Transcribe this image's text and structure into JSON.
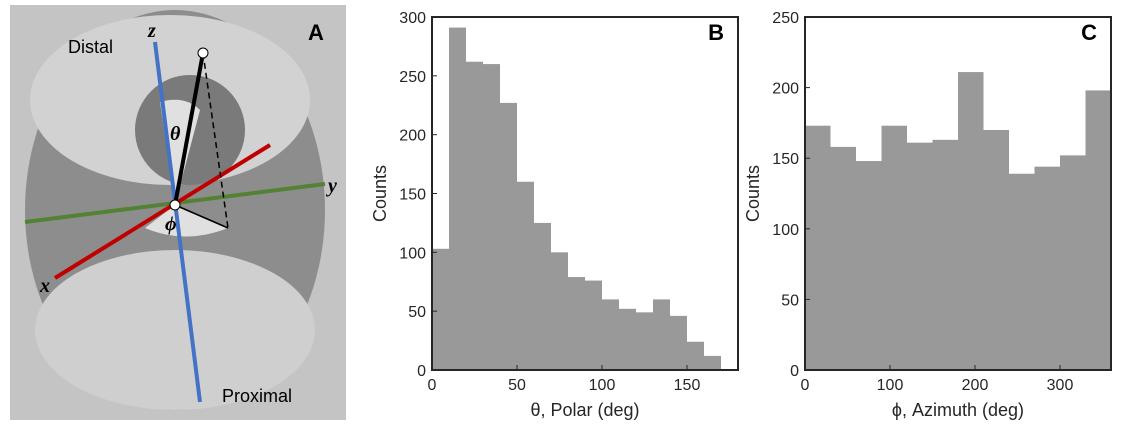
{
  "panel_a": {
    "label": "A",
    "distal": "Distal",
    "proximal": "Proximal",
    "z": "z",
    "y": "y",
    "x": "x",
    "theta": "θ",
    "phi": "ϕ"
  },
  "chart_data": [
    {
      "type": "histogram",
      "label": "B",
      "xlabel": "θ, Polar (deg)",
      "ylabel": "Counts",
      "color": "#999999",
      "bins": [
        0,
        10,
        20,
        30,
        40,
        50,
        60,
        70,
        80,
        90,
        100,
        110,
        120,
        130,
        140,
        150,
        160,
        170
      ],
      "values": [
        103,
        291,
        262,
        260,
        227,
        160,
        125,
        100,
        79,
        76,
        60,
        52,
        49,
        60,
        46,
        24,
        12
      ],
      "xlim": [
        0,
        180
      ],
      "xticks": [
        0,
        50,
        100,
        150
      ],
      "ylim": [
        0,
        300
      ],
      "yticks": [
        0,
        50,
        100,
        150,
        200,
        250,
        300
      ]
    },
    {
      "type": "histogram",
      "label": "C",
      "xlabel": "ϕ, Azimuth (deg)",
      "ylabel": "Counts",
      "color": "#999999",
      "bins": [
        0,
        30,
        60,
        90,
        120,
        150,
        180,
        210,
        240,
        270,
        300,
        330,
        360
      ],
      "values": [
        173,
        158,
        148,
        173,
        161,
        163,
        211,
        170,
        139,
        144,
        152,
        198
      ],
      "xlim": [
        0,
        360
      ],
      "xticks": [
        0,
        100,
        200,
        300
      ],
      "ylim": [
        0,
        250
      ],
      "yticks": [
        0,
        50,
        100,
        150,
        200,
        250
      ]
    }
  ]
}
